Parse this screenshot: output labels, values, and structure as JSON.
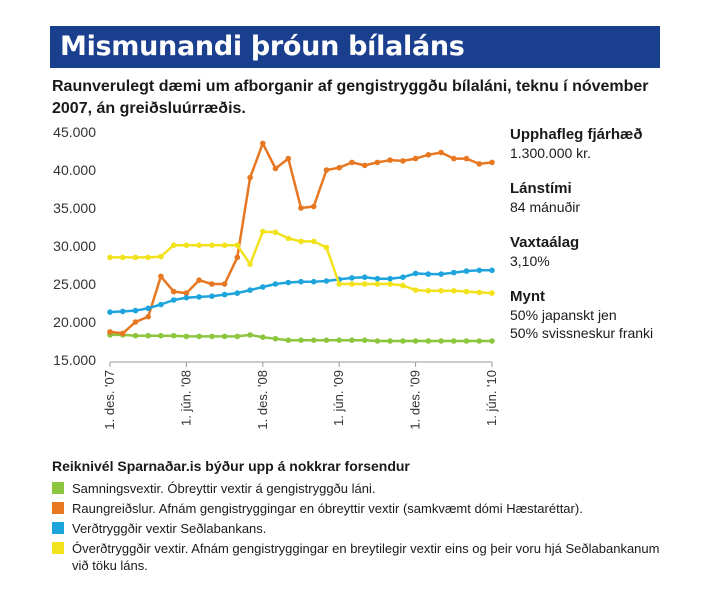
{
  "header": {
    "title": "Mismunandi þróun bílaláns",
    "subtitle": "Raunverulegt dæmi um afborganir af gengistryggðu bílaláni, teknu í nóvember 2007, án greiðsluúrræðis."
  },
  "info": [
    {
      "label": "Upphafleg fjárhæð",
      "value": "1.300.000 kr."
    },
    {
      "label": "Lánstími",
      "value": "84 mánuðir"
    },
    {
      "label": "Vaxtaálag",
      "value": "3,10%"
    },
    {
      "label": "Mynt",
      "value": "50% japanskt jen",
      "value2": "50% svissneskur franki"
    }
  ],
  "legend": {
    "title": "Reiknivél Sparnaðar.is býður upp á nokkrar forsendur",
    "items": [
      {
        "color": "#8cc63f",
        "text": "Samningsvextir. Óbreyttir vextir á gengistryggðu láni."
      },
      {
        "color": "#e87722",
        "text": "Raungreiðslur. Afnám gengistryggingar en óbreyttir vextir (samkvæmt dómi Hæstaréttar)."
      },
      {
        "color": "#1ea4dd",
        "text": "Verðtryggðir vextir Seðlabankans."
      },
      {
        "color": "#f2e21b",
        "text": "Óverðtryggðir vextir. Afnám gengistryggingar en breytilegir vextir eins og þeir voru hjá Seðlabankanum við töku láns."
      }
    ]
  },
  "chart_data": {
    "type": "line",
    "ylim": [
      15000,
      45000
    ],
    "yticks": [
      "15.000",
      "20.000",
      "25.000",
      "30.000",
      "35.000",
      "40.000",
      "45.000"
    ],
    "ytick_values": [
      15000,
      20000,
      25000,
      30000,
      35000,
      40000,
      45000
    ],
    "xticks": [
      "1. des. '07",
      "1. jún. '08",
      "1. des. '08",
      "1. jún. '09",
      "1. des. '09",
      "1. jún. '10"
    ],
    "xtick_positions": [
      0,
      6,
      12,
      18,
      24,
      30
    ],
    "x_count": 31,
    "grid": false,
    "series": [
      {
        "color": "#8cc63f",
        "values": [
          18300,
          18300,
          18200,
          18200,
          18200,
          18200,
          18100,
          18100,
          18100,
          18100,
          18100,
          18300,
          18000,
          17800,
          17600,
          17600,
          17600,
          17600,
          17600,
          17600,
          17600,
          17500,
          17500,
          17500,
          17500,
          17500,
          17500,
          17500,
          17500,
          17500,
          17500
        ]
      },
      {
        "color": "#e87722",
        "values": [
          18700,
          18500,
          20000,
          20700,
          26000,
          24000,
          23800,
          25500,
          25000,
          25000,
          28500,
          39000,
          43500,
          40200,
          41500,
          35000,
          35200,
          40000,
          40300,
          41000,
          40600,
          41000,
          41300,
          41200,
          41500,
          42000,
          42300,
          41500,
          41500,
          40800,
          41000
        ]
      },
      {
        "color": "#1ea4dd",
        "values": [
          21300,
          21400,
          21500,
          21800,
          22300,
          22900,
          23200,
          23300,
          23400,
          23600,
          23800,
          24200,
          24600,
          25000,
          25200,
          25300,
          25300,
          25400,
          25600,
          25800,
          25900,
          25700,
          25700,
          25900,
          26400,
          26300,
          26300,
          26500,
          26700,
          26800,
          26800
        ]
      },
      {
        "color": "#f2e21b",
        "values": [
          28500,
          28500,
          28500,
          28500,
          28600,
          30100,
          30100,
          30100,
          30100,
          30100,
          30100,
          27600,
          31900,
          31800,
          31000,
          30600,
          30600,
          29800,
          25000,
          25000,
          25000,
          25000,
          25000,
          24800,
          24200,
          24100,
          24100,
          24100,
          24000,
          23900,
          23800
        ]
      }
    ]
  }
}
